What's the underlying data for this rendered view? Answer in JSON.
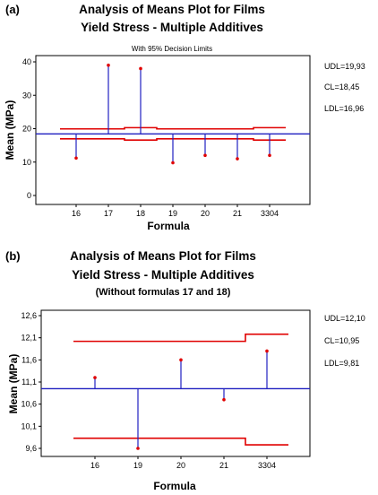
{
  "chart_data": [
    {
      "type": "scatter",
      "panel_label": "(a)",
      "title_line1": "Analysis of Means Plot for  Films",
      "title_line2": "Yield Stress - Multiple Additives",
      "subtitle": "With 95% Decision Limits",
      "xlabel": "Formula",
      "ylabel": "Mean  (MPa)",
      "categories": [
        "16",
        "17",
        "18",
        "19",
        "20",
        "21",
        "3304"
      ],
      "values": [
        11.2,
        39.0,
        38.0,
        9.8,
        12.0,
        11.0,
        12.0
      ],
      "center_line": 18.45,
      "ylim": [
        0,
        40
      ],
      "yticks": [
        "0",
        "10",
        "20",
        "30",
        "40"
      ],
      "limits": {
        "udl_label": "UDL=19,93",
        "cl_label": "CL=18,45",
        "ldl_label": "LDL=16,96",
        "udl_steps": [
          19.93,
          19.93,
          20.3,
          19.93,
          19.93,
          19.93,
          20.3
        ],
        "ldl_steps": [
          16.96,
          16.96,
          16.6,
          16.96,
          16.96,
          16.96,
          16.6
        ]
      },
      "colors": {
        "limits": "#e00000",
        "center": "#2020c0",
        "stems": "#2020c0",
        "points": "#e00000"
      }
    },
    {
      "type": "scatter",
      "panel_label": "(b)",
      "title_line1": "Analysis of Means Plot for  Films",
      "title_line2": "Yield Stress - Multiple Additives",
      "subtitle": "(Without formulas 17 and 18)",
      "xlabel": "Formula",
      "ylabel": "Mean  (MPa)",
      "categories": [
        "16",
        "19",
        "20",
        "21",
        "3304"
      ],
      "values": [
        11.2,
        9.6,
        11.6,
        10.7,
        11.8
      ],
      "center_line": 10.95,
      "ylim": [
        9.6,
        12.6
      ],
      "yticks": [
        "9,6",
        "10,1",
        "10,6",
        "11,1",
        "11,6",
        "12,1",
        "12,6"
      ],
      "limits": {
        "udl_label": "UDL=12,10",
        "cl_label": "CL=10,95",
        "ldl_label": "LDL=9,81",
        "udl_steps": [
          12.02,
          12.02,
          12.02,
          12.02,
          12.18
        ],
        "ldl_steps": [
          9.83,
          9.83,
          9.83,
          9.83,
          9.68
        ]
      },
      "colors": {
        "limits": "#e00000",
        "center": "#2020c0",
        "stems": "#2020c0",
        "points": "#e00000"
      }
    }
  ]
}
